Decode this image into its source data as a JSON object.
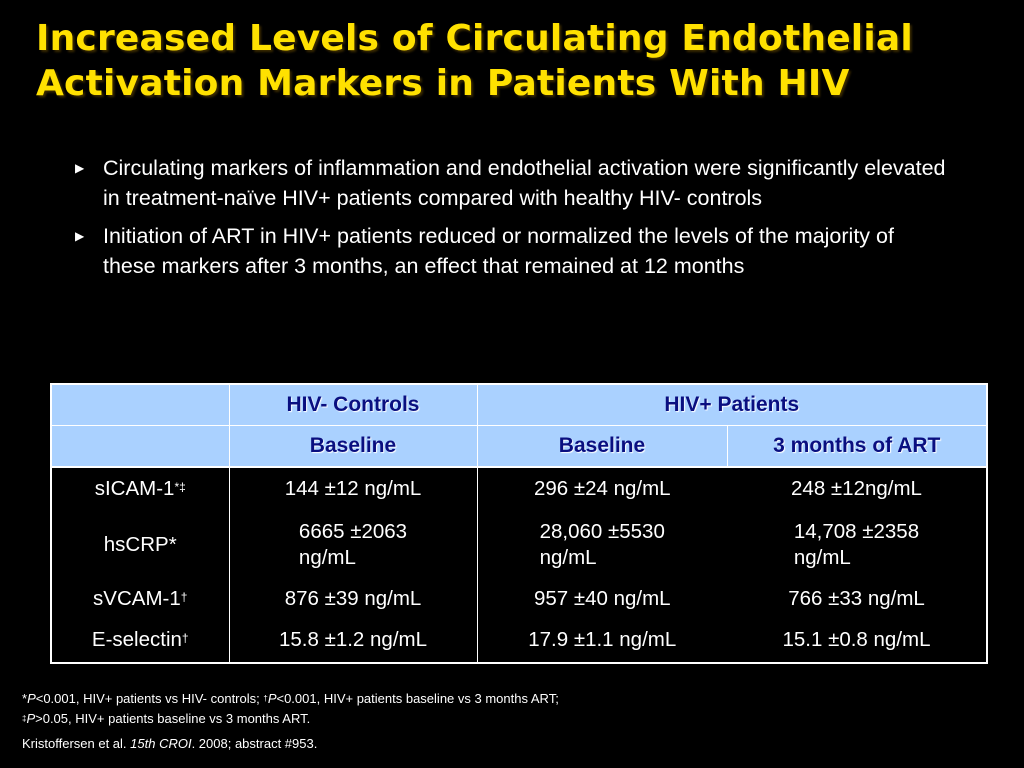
{
  "title": {
    "line1": "Increased Levels of Circulating Endothelial",
    "line2": "Activation Markers in Patients With HIV"
  },
  "bullets": [
    "Circulating markers of  inflammation and endothelial activation were significantly elevated in treatment-naïve HIV+ patients compared with healthy HIV- controls",
    "Initiation of ART in HIV+ patients reduced or normalized the levels of the majority of these markers after 3 months, an effect that remained at 12 months"
  ],
  "bullet_icon": "triangle-right-icon",
  "table": {
    "header_group": {
      "controls": "HIV- Controls",
      "patients": "HIV+ Patients"
    },
    "subheader": {
      "controls_baseline": "Baseline",
      "patients_baseline": "Baseline",
      "patients_art": "3 months of ART"
    },
    "rows": [
      {
        "marker": "sICAM-1",
        "marker_sup": "*‡",
        "controls": "144 ±12 ng/mL",
        "baseline": "296 ±24 ng/mL",
        "art": "248 ±12ng/mL"
      },
      {
        "marker": "hsCRP*",
        "marker_sup": "",
        "controls_l1": "6665 ±2063",
        "controls_l2": "ng/mL",
        "baseline_l1": "28,060 ±5530",
        "baseline_l2": "ng/mL",
        "art_l1": "14,708 ±2358",
        "art_l2": "ng/mL"
      },
      {
        "marker": "sVCAM-1",
        "marker_sup": "†",
        "controls": "876 ±39 ng/mL",
        "baseline": "957 ±40 ng/mL",
        "art": "766 ±33 ng/mL"
      },
      {
        "marker": "E-selectin",
        "marker_sup": "†",
        "controls": "15.8 ±1.2 ng/mL",
        "baseline": "17.9 ±1.1 ng/mL",
        "art": "15.1 ±0.8 ng/mL"
      }
    ]
  },
  "footnotes": {
    "line1": {
      "star": "*",
      "p1": "P",
      "t1": "<0.001, HIV+ patients vs HIV- controls; ",
      "dagger": "†",
      "p2": "P",
      "t2": "<0.001, HIV+ patients baseline vs 3 months ART;"
    },
    "line2": {
      "ddagger": "‡",
      "p": "P",
      "t": ">0.05, HIV+ patients baseline vs 3 months ART."
    },
    "citation": {
      "authors": "Kristoffersen et al. ",
      "journal": "15th CROI",
      "rest": ". 2008; abstract #953."
    }
  },
  "colors": {
    "background": "#000000",
    "title": "#ffe100",
    "table_header_bg": "#aad1ff",
    "table_header_text": "#0a0f80",
    "body_text": "#ffffff"
  }
}
